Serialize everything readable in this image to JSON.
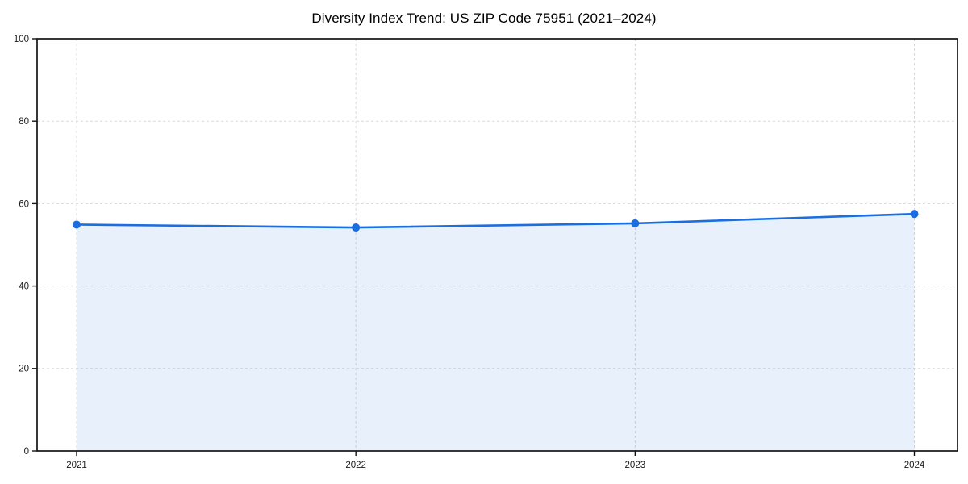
{
  "chart_data": {
    "type": "line",
    "title": "Diversity Index Trend: US ZIP Code 75951 (2021–2024)",
    "categories": [
      "2021",
      "2022",
      "2023",
      "2024"
    ],
    "values": [
      54.9,
      54.2,
      55.2,
      57.5
    ],
    "xlabel": "",
    "ylabel": "",
    "ylim": [
      0,
      100
    ],
    "y_ticks": [
      0,
      20,
      40,
      60,
      80,
      100
    ],
    "grid": true,
    "grid_style": "dashed",
    "area_fill": true,
    "markers": true,
    "legend_position": "none",
    "colors": {
      "line": "#1a6ee0",
      "marker": "#1a6ee0",
      "area": "rgba(26, 110, 224, 0.10)",
      "grid": "#d9d9d9",
      "spine": "#141414",
      "tick_label": "#1a1a1a",
      "title": "#000000",
      "background": "#ffffff"
    }
  }
}
